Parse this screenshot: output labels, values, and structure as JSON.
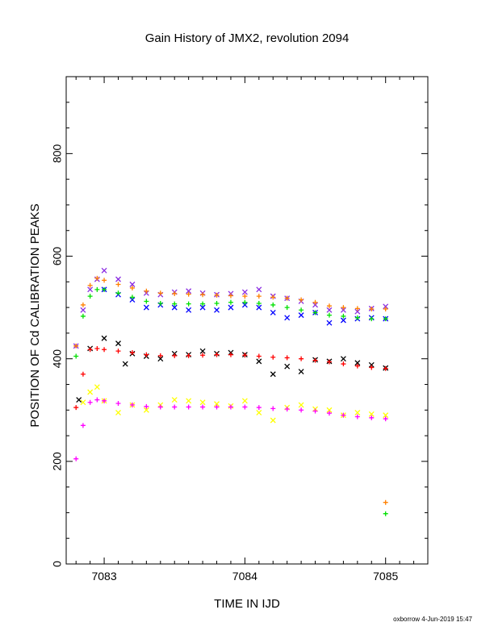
{
  "chart_data": {
    "type": "scatter",
    "title": "Gain History of JMX2, revolution 2094",
    "xlabel": "TIME IN IJD",
    "ylabel": "POSITION OF Cd CALIBRATION PEAKS",
    "xlim": [
      7082.73,
      7085.3
    ],
    "ylim": [
      0,
      950
    ],
    "x_ticks": [
      7083,
      7084,
      7085
    ],
    "x_tick_labels": [
      "7083",
      "7084",
      "7085"
    ],
    "y_ticks": [
      0,
      200,
      400,
      600,
      800
    ],
    "y_tick_labels": [
      "0",
      "200",
      "400",
      "600",
      "800"
    ],
    "grid": false,
    "footer": "oxborrow  4-Jun-2019 15:47",
    "series": [
      {
        "marker": "x",
        "color": "#8a2be2",
        "x": [
          7082.8,
          7082.85,
          7082.9,
          7082.95,
          7083.0,
          7083.1,
          7083.2,
          7083.3,
          7083.4,
          7083.5,
          7083.6,
          7083.7,
          7083.8,
          7083.9,
          7084.0,
          7084.1,
          7084.2,
          7084.3,
          7084.4,
          7084.5,
          7084.6,
          7084.7,
          7084.8,
          7084.9,
          7085.0
        ],
        "y": [
          425,
          495,
          535,
          555,
          572,
          555,
          545,
          528,
          525,
          530,
          532,
          528,
          525,
          527,
          530,
          535,
          522,
          518,
          512,
          505,
          495,
          495,
          492,
          498,
          502
        ]
      },
      {
        "marker": "x",
        "color": "#0000ff",
        "x": [
          7083.0,
          7083.1,
          7083.2,
          7083.3,
          7083.4,
          7083.5,
          7083.6,
          7083.7,
          7083.8,
          7083.9,
          7084.0,
          7084.1,
          7084.2,
          7084.3,
          7084.4,
          7084.5,
          7084.6,
          7084.7,
          7084.8,
          7084.9,
          7085.0
        ],
        "y": [
          535,
          525,
          515,
          500,
          505,
          500,
          495,
          500,
          495,
          500,
          505,
          500,
          490,
          480,
          485,
          490,
          470,
          475,
          478,
          480,
          478
        ]
      },
      {
        "marker": "+",
        "color": "#ff8000",
        "x": [
          7082.8,
          7082.85,
          7082.9,
          7082.95,
          7083.0,
          7083.1,
          7083.2,
          7083.3,
          7083.4,
          7083.5,
          7083.6,
          7083.7,
          7083.8,
          7083.9,
          7084.0,
          7084.1,
          7084.2,
          7084.3,
          7084.4,
          7084.5,
          7084.6,
          7084.7,
          7084.8,
          7084.9,
          7085.0
        ],
        "y": [
          425,
          505,
          543,
          557,
          553,
          545,
          538,
          532,
          528,
          527,
          526,
          525,
          524,
          523,
          522,
          522,
          520,
          518,
          515,
          510,
          503,
          500,
          498,
          497,
          497
        ]
      },
      {
        "marker": "+",
        "color": "#00e000",
        "x": [
          7082.8,
          7082.85,
          7082.9,
          7082.95,
          7083.0,
          7083.1,
          7083.2,
          7083.3,
          7083.4,
          7083.5,
          7083.6,
          7083.7,
          7083.8,
          7083.9,
          7084.0,
          7084.1,
          7084.2,
          7084.3,
          7084.4,
          7084.5,
          7084.6,
          7084.7,
          7084.8,
          7084.9,
          7085.0
        ],
        "y": [
          405,
          483,
          522,
          535,
          535,
          528,
          520,
          512,
          508,
          507,
          507,
          507,
          508,
          510,
          510,
          508,
          505,
          500,
          495,
          490,
          485,
          483,
          480,
          478,
          478
        ]
      },
      {
        "marker": "x",
        "color": "#000000",
        "x": [
          7082.82,
          7082.9,
          7083.0,
          7083.1,
          7083.15,
          7083.2,
          7083.3,
          7083.4,
          7083.5,
          7083.6,
          7083.7,
          7083.8,
          7083.9,
          7084.0,
          7084.1,
          7084.2,
          7084.3,
          7084.4,
          7084.5,
          7084.6,
          7084.7,
          7084.8,
          7084.9,
          7085.0
        ],
        "y": [
          320,
          420,
          440,
          430,
          390,
          410,
          405,
          400,
          410,
          408,
          415,
          410,
          412,
          408,
          395,
          370,
          385,
          375,
          398,
          395,
          400,
          392,
          388,
          382
        ]
      },
      {
        "marker": "+",
        "color": "#ff0000",
        "x": [
          7082.8,
          7082.85,
          7082.9,
          7082.95,
          7083.0,
          7083.1,
          7083.2,
          7083.3,
          7083.4,
          7083.5,
          7083.6,
          7083.7,
          7083.8,
          7083.9,
          7084.0,
          7084.1,
          7084.2,
          7084.3,
          7084.4,
          7084.5,
          7084.6,
          7084.7,
          7084.8,
          7084.9,
          7085.0
        ],
        "y": [
          305,
          370,
          418,
          420,
          418,
          415,
          412,
          408,
          406,
          406,
          406,
          407,
          408,
          408,
          407,
          405,
          403,
          402,
          400,
          397,
          394,
          390,
          386,
          383,
          381
        ]
      },
      {
        "marker": "x",
        "color": "#ffff00",
        "x": [
          7082.85,
          7082.9,
          7082.95,
          7083.0,
          7083.1,
          7083.2,
          7083.3,
          7083.4,
          7083.5,
          7083.6,
          7083.7,
          7083.8,
          7083.9,
          7084.0,
          7084.1,
          7084.2,
          7084.3,
          7084.4,
          7084.5,
          7084.6,
          7084.7,
          7084.8,
          7084.9,
          7085.0
        ],
        "y": [
          315,
          335,
          345,
          318,
          295,
          310,
          300,
          310,
          320,
          318,
          315,
          312,
          308,
          318,
          295,
          280,
          305,
          310,
          302,
          300,
          290,
          295,
          292,
          290
        ]
      },
      {
        "marker": "+",
        "color": "#ff00ff",
        "x": [
          7082.8,
          7082.85,
          7082.9,
          7082.95,
          7083.0,
          7083.1,
          7083.2,
          7083.3,
          7083.4,
          7083.5,
          7083.6,
          7083.7,
          7083.8,
          7083.9,
          7084.0,
          7084.1,
          7084.2,
          7084.3,
          7084.4,
          7084.5,
          7084.6,
          7084.7,
          7084.8,
          7084.9,
          7085.0
        ],
        "y": [
          205,
          270,
          315,
          320,
          318,
          313,
          310,
          307,
          306,
          306,
          306,
          306,
          306,
          306,
          306,
          305,
          303,
          302,
          300,
          298,
          294,
          290,
          287,
          285,
          283
        ]
      },
      {
        "marker": "+",
        "color": "#ff8000",
        "x": [
          7085.0
        ],
        "y": [
          120
        ]
      },
      {
        "marker": "+",
        "color": "#00e000",
        "x": [
          7085.0
        ],
        "y": [
          98
        ]
      }
    ]
  }
}
